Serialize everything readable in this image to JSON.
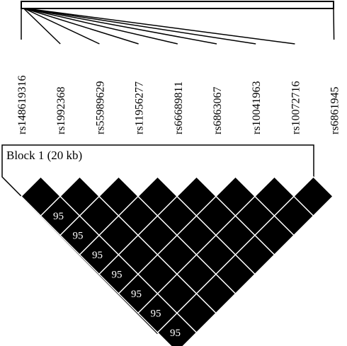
{
  "markers": [
    "rs148619316",
    "rs1992368",
    "rs55989629",
    "rs11956277",
    "rs66689811",
    "rs6863067",
    "rs10041963",
    "rs10072716",
    "rs6861945"
  ],
  "block": {
    "label": "Block 1 (20 kb)"
  },
  "ld_matrix": {
    "description_values": "pairwise LD between adjacent markers; only values printed are shown",
    "adjacent_labels": [
      "",
      "95",
      "95",
      "95",
      "95",
      "95",
      "95",
      "95"
    ],
    "fill_color": "#000000",
    "divider_color": "#ffffff",
    "label_color": "#ffffff"
  }
}
